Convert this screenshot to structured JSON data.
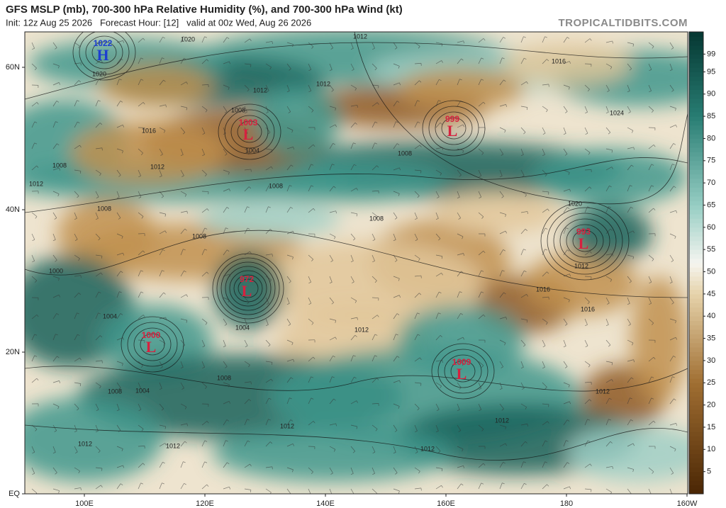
{
  "header": {
    "title": "GFS MSLP (mb), 700-300 hPa Relative Humidity (%), and 700-300 hPa Wind (kt)",
    "subtitle": "Init: 12z Aug 25 2026   Forecast Hour: [12]   valid at 00z Wed, Aug 26 2026",
    "site": "TROPICALTIDBITS.COM"
  },
  "lon_ticks": [
    "100E",
    "120E",
    "140E",
    "160E",
    "180",
    "160W"
  ],
  "lat_ticks": [
    "60N",
    "40N",
    "20N",
    "EQ"
  ],
  "colorbar": {
    "lim": [
      0,
      104
    ],
    "ticks": [
      5,
      10,
      15,
      20,
      25,
      30,
      35,
      40,
      45,
      50,
      55,
      60,
      65,
      70,
      75,
      80,
      85,
      90,
      95,
      99
    ]
  },
  "centers": [
    {
      "kind": "H",
      "value": "1022"
    },
    {
      "kind": "L",
      "value": "1003"
    },
    {
      "kind": "L",
      "value": "999"
    },
    {
      "kind": "L",
      "value": "993"
    },
    {
      "kind": "L",
      "value": "972"
    },
    {
      "kind": "L",
      "value": "1000"
    },
    {
      "kind": "L",
      "value": "1009"
    }
  ],
  "isobar_labels": [
    "1020",
    "1012",
    "1016",
    "1020",
    "1012",
    "1012",
    "1008",
    "1024",
    "1016",
    "1004",
    "1008",
    "1012",
    "1008",
    "1012",
    "1008",
    "1008",
    "1020",
    "1008",
    "1008",
    "1000",
    "1012",
    "1016",
    "1016",
    "1004",
    "1004",
    "1012",
    "1008",
    "1004",
    "1008",
    "1012",
    "1012",
    "1012",
    "1012",
    "1012",
    "1012"
  ]
}
